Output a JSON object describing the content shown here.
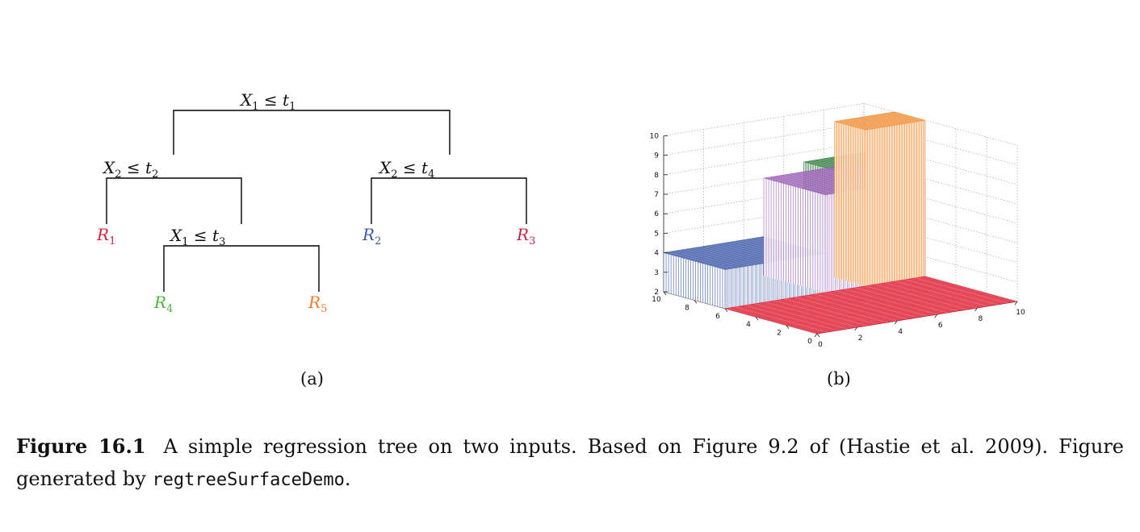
{
  "figure": {
    "panel_a_label": "(a)",
    "panel_b_label": "(b)",
    "caption": {
      "number": "Figure 16.1",
      "text_before": "A simple regression tree on two inputs. Based on Figure 9.2 of (Hastie et al. 2009). Figure generated by ",
      "code": "regtreeSurfaceDemo",
      "text_after": "."
    }
  },
  "tree": {
    "splits": [
      {
        "var": "X",
        "var_sub": "1",
        "op": " ≤ ",
        "thr": "t",
        "thr_sub": "1"
      },
      {
        "var": "X",
        "var_sub": "2",
        "op": " ≤ ",
        "thr": "t",
        "thr_sub": "2"
      },
      {
        "var": "X",
        "var_sub": "2",
        "op": " ≤ ",
        "thr": "t",
        "thr_sub": "4"
      },
      {
        "var": "X",
        "var_sub": "1",
        "op": " ≤ ",
        "thr": "t",
        "thr_sub": "3"
      }
    ],
    "leaves": [
      {
        "name": "R",
        "sub": "1",
        "color": "#d6243b"
      },
      {
        "name": "R",
        "sub": "2",
        "color": "#3a5ba0"
      },
      {
        "name": "R",
        "sub": "3",
        "color": "#c0284a"
      },
      {
        "name": "R",
        "sub": "4",
        "color": "#4cb340"
      },
      {
        "name": "R",
        "sub": "5",
        "color": "#f07b2a"
      }
    ]
  },
  "chart_data": {
    "type": "surface3d",
    "x_ticks": [
      "0",
      "2",
      "4",
      "6",
      "8",
      "10"
    ],
    "y_ticks": [
      "0",
      "2",
      "4",
      "6",
      "8",
      "10"
    ],
    "z_ticks": [
      "2",
      "3",
      "4",
      "5",
      "6",
      "7",
      "8",
      "9",
      "10"
    ],
    "xlim": [
      0,
      10
    ],
    "ylim": [
      0,
      10
    ],
    "zlim": [
      2,
      10
    ],
    "grid": true,
    "regions": [
      {
        "x": [
          0,
          10
        ],
        "y": [
          0,
          6
        ],
        "z": 2,
        "color": "#e0283c"
      },
      {
        "x": [
          0,
          5
        ],
        "y": [
          6,
          10
        ],
        "z": 4,
        "color": "#3f5aa8"
      },
      {
        "x": [
          5,
          10
        ],
        "y": [
          6,
          10
        ],
        "z": 7,
        "color": "#9a5fb5"
      },
      {
        "x": [
          7,
          10
        ],
        "y": [
          6,
          8
        ],
        "z": 10,
        "color": "#f08a2b"
      },
      {
        "x": [
          7,
          10
        ],
        "y": [
          8,
          10
        ],
        "z": 7.5,
        "color": "#2a7a3a"
      }
    ]
  }
}
